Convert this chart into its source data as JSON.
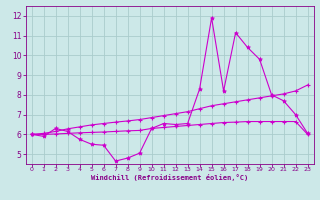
{
  "xlabel": "Windchill (Refroidissement éolien,°C)",
  "ylabel": "",
  "xlim": [
    -0.5,
    23.5
  ],
  "ylim": [
    4.5,
    12.5
  ],
  "xticks": [
    0,
    1,
    2,
    3,
    4,
    5,
    6,
    7,
    8,
    9,
    10,
    11,
    12,
    13,
    14,
    15,
    16,
    17,
    18,
    19,
    20,
    21,
    22,
    23
  ],
  "yticks": [
    5,
    6,
    7,
    8,
    9,
    10,
    11,
    12
  ],
  "background_color": "#cce8e8",
  "grid_color": "#aacccc",
  "line_color": "#cc00cc",
  "line1_x": [
    0,
    1,
    2,
    3,
    4,
    5,
    6,
    7,
    8,
    9,
    10,
    11,
    12,
    13,
    14,
    15,
    16,
    17,
    18,
    19,
    20,
    21,
    22,
    23
  ],
  "line1_y": [
    6.0,
    5.9,
    6.3,
    6.15,
    5.75,
    5.5,
    5.45,
    4.65,
    4.8,
    5.05,
    6.3,
    6.55,
    6.5,
    6.55,
    8.3,
    11.9,
    8.2,
    11.15,
    10.4,
    9.8,
    8.0,
    7.7,
    7.0,
    6.05
  ],
  "line2_x": [
    0,
    1,
    2,
    3,
    4,
    5,
    6,
    7,
    8,
    9,
    10,
    11,
    12,
    13,
    14,
    15,
    16,
    17,
    18,
    19,
    20,
    21,
    22,
    23
  ],
  "line2_y": [
    6.0,
    6.05,
    6.15,
    6.28,
    6.38,
    6.48,
    6.55,
    6.62,
    6.68,
    6.75,
    6.85,
    6.95,
    7.05,
    7.15,
    7.3,
    7.45,
    7.55,
    7.65,
    7.75,
    7.85,
    7.95,
    8.05,
    8.2,
    8.5
  ],
  "line3_x": [
    0,
    1,
    2,
    3,
    4,
    5,
    6,
    7,
    8,
    9,
    10,
    11,
    12,
    13,
    14,
    15,
    16,
    17,
    18,
    19,
    20,
    21,
    22,
    23
  ],
  "line3_y": [
    6.0,
    6.0,
    6.02,
    6.05,
    6.08,
    6.1,
    6.12,
    6.15,
    6.18,
    6.2,
    6.3,
    6.35,
    6.4,
    6.45,
    6.5,
    6.55,
    6.6,
    6.62,
    6.65,
    6.65,
    6.65,
    6.65,
    6.65,
    6.0
  ]
}
